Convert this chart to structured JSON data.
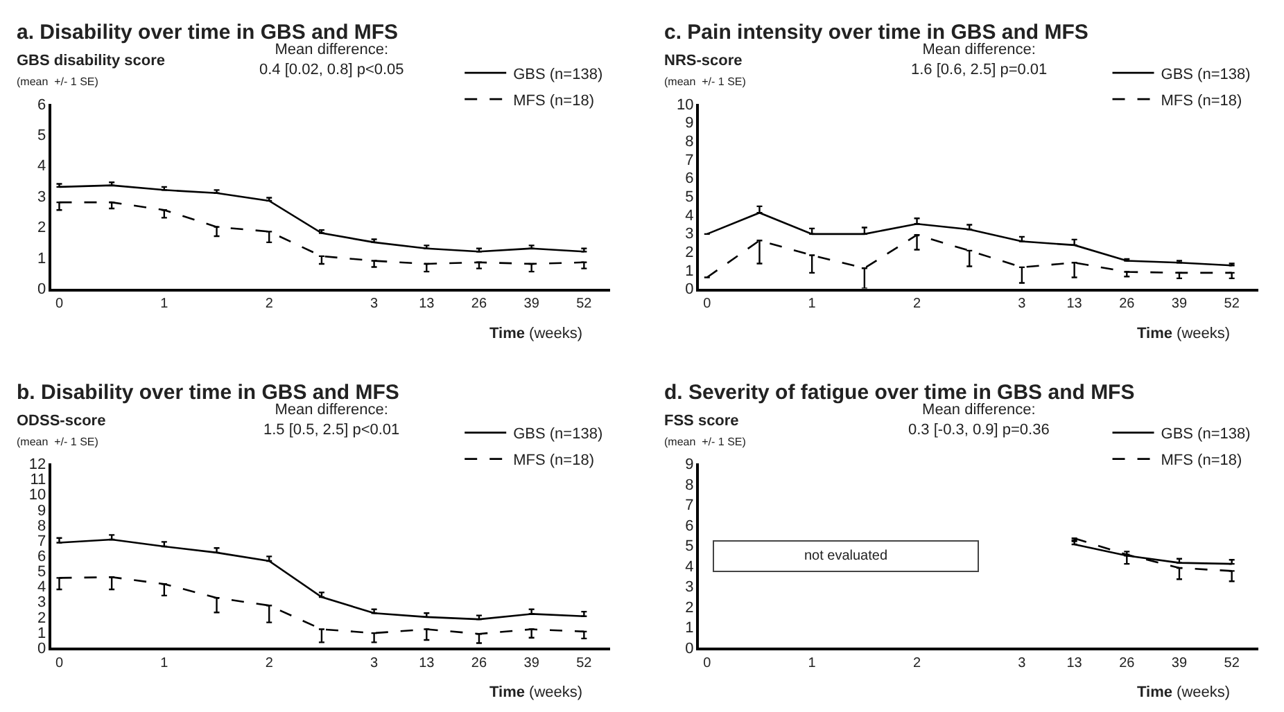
{
  "chart_data": [
    {
      "type": "line",
      "title": "a. Disability over time in GBS and MFS",
      "subtitle": "Mean difference:\n0.4 [0.02, 0.8] p<0.05",
      "ylabel": "GBS disability score\n(mean  +/- 1 SE)",
      "xlabel": "Time (weeks)",
      "categories": [
        "0",
        null,
        "1",
        null,
        "2",
        null,
        "3",
        "13",
        "26",
        "39",
        "52"
      ],
      "ylim": [
        0,
        6
      ],
      "yticks": [
        0,
        1,
        2,
        3,
        4,
        5,
        6
      ],
      "legend": "top right",
      "marker": "none",
      "series": [
        {
          "name": "GBS (n=138)",
          "color": "#000000",
          "line_style": "solid",
          "values": [
            3.3,
            3.35,
            3.2,
            3.1,
            2.85,
            1.8,
            1.5,
            1.3,
            1.2,
            1.3,
            1.2
          ],
          "errors": [
            [
              3.3,
              3.4
            ],
            [
              3.35,
              3.45
            ],
            [
              3.2,
              3.3
            ],
            [
              3.1,
              3.2
            ],
            [
              2.85,
              2.95
            ],
            [
              1.8,
              1.9
            ],
            [
              1.5,
              1.6
            ],
            [
              1.3,
              1.4
            ],
            [
              1.2,
              1.3
            ],
            [
              1.3,
              1.4
            ],
            [
              1.2,
              1.3
            ]
          ]
        },
        {
          "name": "MFS (n=18)",
          "color": "#000000",
          "line_style": "dashed",
          "values": [
            2.8,
            2.8,
            2.55,
            2.0,
            1.85,
            1.05,
            0.9,
            0.8,
            0.85,
            0.8,
            0.85
          ],
          "errors": [
            [
              2.55,
              2.8
            ],
            [
              2.6,
              2.8
            ],
            [
              2.3,
              2.55
            ],
            [
              1.7,
              2.0
            ],
            [
              1.5,
              1.85
            ],
            [
              0.8,
              1.05
            ],
            [
              0.7,
              0.9
            ],
            [
              0.55,
              0.8
            ],
            [
              0.65,
              0.85
            ],
            [
              0.55,
              0.8
            ],
            [
              0.65,
              0.85
            ]
          ]
        }
      ]
    },
    {
      "type": "line",
      "title": "c. Pain intensity over time in GBS and MFS",
      "subtitle": "Mean difference:\n1.6 [0.6, 2.5] p=0.01",
      "ylabel": "NRS-score\n(mean  +/- 1 SE)",
      "xlabel": "Time (weeks)",
      "categories": [
        "0",
        null,
        "1",
        null,
        "2",
        null,
        "3",
        "13",
        "26",
        "39",
        "52"
      ],
      "ylim": [
        0,
        10
      ],
      "yticks": [
        0,
        1,
        2,
        3,
        4,
        5,
        6,
        7,
        8,
        9,
        10
      ],
      "legend": "top right",
      "marker": "none",
      "series": [
        {
          "name": "GBS (n=138)",
          "color": "#000000",
          "line_style": "solid",
          "values": [
            2.95,
            4.1,
            2.95,
            2.95,
            3.5,
            3.2,
            2.55,
            2.35,
            1.5,
            1.4,
            1.25
          ],
          "errors": [
            null,
            [
              4.1,
              4.45
            ],
            [
              2.95,
              3.25
            ],
            [
              2.95,
              3.3
            ],
            [
              3.5,
              3.8
            ],
            [
              3.2,
              3.45
            ],
            [
              2.55,
              2.8
            ],
            [
              2.35,
              2.65
            ],
            [
              1.5,
              1.6
            ],
            [
              1.4,
              1.5
            ],
            [
              1.25,
              1.35
            ]
          ]
        },
        {
          "name": "MFS (n=18)",
          "color": "#000000",
          "line_style": "dashed",
          "values": [
            0.6,
            2.6,
            1.8,
            1.1,
            2.9,
            2.05,
            1.15,
            1.4,
            0.9,
            0.85,
            0.85
          ],
          "errors": [
            null,
            [
              1.35,
              2.6
            ],
            [
              0.85,
              1.8
            ],
            [
              0,
              1.1
            ],
            [
              2.1,
              2.9
            ],
            [
              1.2,
              2.05
            ],
            [
              0.3,
              1.15
            ],
            [
              0.6,
              1.4
            ],
            [
              0.65,
              0.9
            ],
            [
              0.55,
              0.85
            ],
            [
              0.55,
              0.85
            ]
          ]
        }
      ]
    },
    {
      "type": "line",
      "title": "b. Disability over time in GBS and MFS",
      "subtitle": "Mean difference:\n1.5 [0.5, 2.5] p<0.01",
      "ylabel": "ODSS-score\n(mean  +/- 1 SE)",
      "xlabel": "Time (weeks)",
      "categories": [
        "0",
        null,
        "1",
        null,
        "2",
        null,
        "3",
        "13",
        "26",
        "39",
        "52"
      ],
      "ylim": [
        0,
        12
      ],
      "yticks": [
        0,
        1,
        2,
        3,
        4,
        5,
        6,
        7,
        8,
        9,
        10,
        11,
        12
      ],
      "legend": "top right",
      "marker": "none",
      "series": [
        {
          "name": "GBS (n=138)",
          "color": "#000000",
          "line_style": "solid",
          "values": [
            6.85,
            7.05,
            6.6,
            6.2,
            5.65,
            3.3,
            2.25,
            2.0,
            1.85,
            2.2,
            2.05
          ],
          "errors": [
            [
              6.85,
              7.15
            ],
            [
              7.05,
              7.35
            ],
            [
              6.6,
              6.9
            ],
            [
              6.2,
              6.5
            ],
            [
              5.65,
              5.95
            ],
            [
              3.3,
              3.6
            ],
            [
              2.25,
              2.5
            ],
            [
              2.0,
              2.25
            ],
            [
              1.85,
              2.1
            ],
            [
              2.2,
              2.5
            ],
            [
              2.05,
              2.35
            ]
          ]
        },
        {
          "name": "MFS (n=18)",
          "color": "#000000",
          "line_style": "dashed",
          "values": [
            4.55,
            4.6,
            4.15,
            3.25,
            2.75,
            1.2,
            0.95,
            1.2,
            0.9,
            1.2,
            1.05
          ],
          "errors": [
            [
              3.8,
              4.55
            ],
            [
              3.8,
              4.6
            ],
            [
              3.4,
              4.15
            ],
            [
              2.3,
              3.25
            ],
            [
              1.65,
              2.75
            ],
            [
              0.35,
              1.2
            ],
            [
              0.35,
              0.95
            ],
            [
              0.5,
              1.2
            ],
            [
              0.3,
              0.9
            ],
            [
              0.65,
              1.2
            ],
            [
              0.6,
              1.05
            ]
          ]
        }
      ]
    },
    {
      "type": "line",
      "title": "d. Severity of fatigue over time in GBS and MFS",
      "subtitle": "Mean difference:\n0.3 [-0.3, 0.9] p=0.36",
      "ylabel": "FSS score\n(mean  +/- 1 SE)",
      "xlabel": "Time (weeks)",
      "categories": [
        "0",
        null,
        "1",
        null,
        "2",
        null,
        "3",
        "13",
        "26",
        "39",
        "52"
      ],
      "ylim": [
        0,
        9
      ],
      "yticks": [
        0,
        1,
        2,
        3,
        4,
        5,
        6,
        7,
        8,
        9
      ],
      "legend": "top right",
      "annotations": [
        "not evaluated"
      ],
      "series": [
        {
          "name": "GBS (n=138)",
          "color": "#000000",
          "line_style": "solid",
          "values": [
            null,
            null,
            null,
            null,
            null,
            null,
            null,
            5.05,
            4.5,
            4.15,
            4.1
          ],
          "errors": [
            null,
            null,
            null,
            null,
            null,
            null,
            null,
            [
              5.05,
              5.25
            ],
            [
              4.5,
              4.7
            ],
            [
              4.15,
              4.35
            ],
            [
              4.1,
              4.3
            ]
          ]
        },
        {
          "name": "MFS (n=18)",
          "color": "#000000",
          "line_style": "dashed",
          "values": [
            null,
            null,
            null,
            null,
            null,
            null,
            null,
            5.35,
            4.55,
            3.9,
            3.75
          ],
          "errors": [
            null,
            null,
            null,
            null,
            null,
            null,
            null,
            [
              5.2,
              5.35
            ],
            [
              4.1,
              4.55
            ],
            [
              3.35,
              3.9
            ],
            [
              3.25,
              3.75
            ]
          ]
        }
      ]
    }
  ]
}
